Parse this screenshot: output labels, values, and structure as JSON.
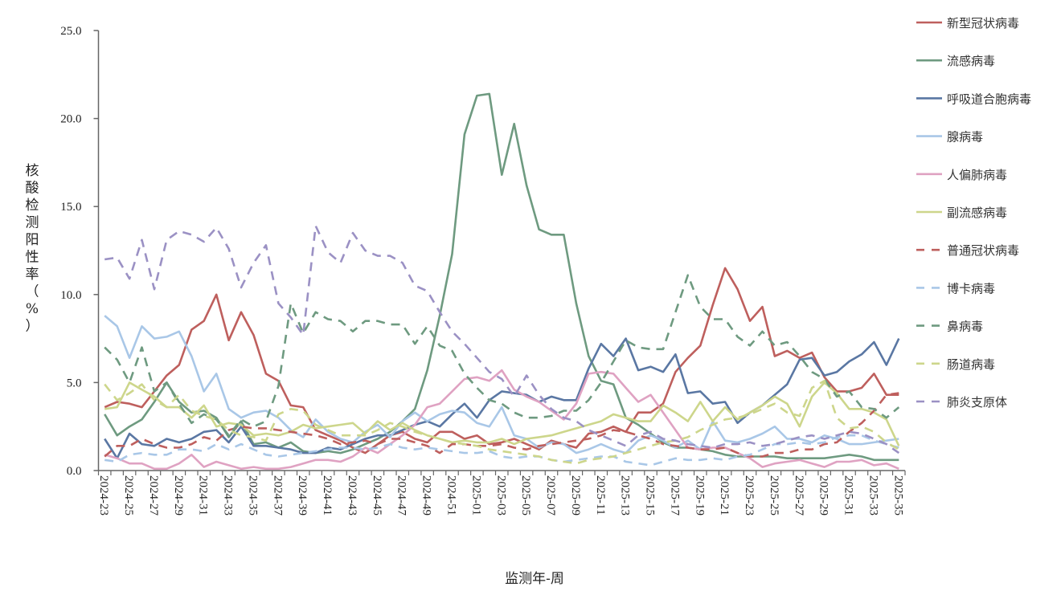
{
  "chart_data": {
    "type": "line",
    "title": "",
    "xlabel": "监测年-周",
    "ylabel": "核酸检测阳性率（%）",
    "ylim": [
      0,
      25
    ],
    "yticks": [
      "0.0",
      "5.0",
      "10.0",
      "15.0",
      "20.0",
      "25.0"
    ],
    "grid": false,
    "legend_position": "right",
    "categories": [
      "2024-23",
      "2024-24",
      "2024-25",
      "2024-26",
      "2024-27",
      "2024-28",
      "2024-29",
      "2024-30",
      "2024-31",
      "2024-32",
      "2024-33",
      "2024-34",
      "2024-35",
      "2024-36",
      "2024-37",
      "2024-38",
      "2024-39",
      "2024-40",
      "2024-41",
      "2024-42",
      "2024-43",
      "2024-44",
      "2024-45",
      "2024-46",
      "2024-47",
      "2024-48",
      "2024-49",
      "2024-50",
      "2024-51",
      "2024-52",
      "2025-01",
      "2025-02",
      "2025-03",
      "2025-04",
      "2025-05",
      "2025-06",
      "2025-07",
      "2025-08",
      "2025-09",
      "2025-10",
      "2025-11",
      "2025-12",
      "2025-13",
      "2025-14",
      "2025-15",
      "2025-16",
      "2025-17",
      "2025-18",
      "2025-19",
      "2025-20",
      "2025-21",
      "2025-22",
      "2025-23",
      "2025-24",
      "2025-25",
      "2025-26",
      "2025-27",
      "2025-28",
      "2025-29",
      "2025-30",
      "2025-31",
      "2025-32",
      "2025-33",
      "2025-34",
      "2025-35"
    ],
    "series": [
      {
        "name": "新型冠状病毒",
        "color": "#be5f5d",
        "dash": false,
        "values": [
          3.6,
          3.9,
          3.8,
          3.6,
          4.5,
          5.4,
          6.0,
          8.0,
          8.5,
          10.0,
          7.4,
          9.0,
          7.7,
          5.5,
          5.1,
          3.7,
          3.6,
          2.3,
          2.0,
          1.7,
          1.3,
          1.0,
          1.5,
          2.0,
          2.2,
          1.8,
          1.6,
          2.2,
          2.2,
          1.8,
          2.0,
          1.5,
          1.6,
          1.8,
          1.5,
          1.2,
          1.7,
          1.5,
          1.3,
          2.1,
          2.2,
          2.5,
          2.2,
          3.3,
          3.3,
          3.8,
          5.6,
          6.4,
          7.1,
          9.4,
          11.5,
          10.3,
          8.5,
          9.3,
          6.5,
          6.8,
          6.4,
          6.7,
          5.3,
          4.5,
          4.5,
          4.7,
          5.5,
          4.3,
          4.3
        ]
      },
      {
        "name": "流感病毒",
        "color": "#6e9a80",
        "dash": false,
        "values": [
          3.2,
          2.0,
          2.5,
          2.9,
          3.9,
          5.0,
          3.9,
          3.3,
          3.4,
          3.0,
          1.9,
          2.8,
          1.5,
          1.6,
          1.3,
          1.6,
          1.1,
          1.0,
          1.1,
          1.0,
          1.2,
          1.5,
          1.8,
          2.2,
          2.8,
          3.5,
          5.7,
          8.8,
          12.3,
          19.1,
          21.3,
          21.4,
          16.8,
          19.7,
          16.2,
          13.7,
          13.4,
          13.4,
          9.5,
          6.5,
          5.1,
          4.9,
          3.0,
          2.6,
          2.1,
          1.6,
          1.3,
          1.3,
          1.2,
          1.1,
          0.9,
          0.8,
          0.8,
          0.8,
          0.8,
          0.7,
          0.7,
          0.7,
          0.7,
          0.8,
          0.9,
          0.8,
          0.6,
          0.6,
          0.6
        ]
      },
      {
        "name": "呼吸道合胞病毒",
        "color": "#5a77a3",
        "dash": false,
        "values": [
          1.8,
          0.7,
          2.1,
          1.5,
          1.4,
          1.8,
          1.6,
          1.8,
          2.2,
          2.3,
          1.6,
          2.5,
          1.4,
          1.4,
          1.3,
          1.2,
          1.0,
          1.0,
          1.3,
          1.2,
          1.5,
          1.8,
          2.0,
          2.0,
          2.3,
          2.6,
          2.8,
          2.5,
          3.2,
          3.8,
          3.0,
          4.0,
          4.5,
          4.4,
          4.3,
          3.9,
          4.2,
          4.0,
          4.0,
          5.8,
          7.2,
          6.5,
          7.5,
          5.7,
          5.9,
          5.6,
          6.6,
          4.4,
          4.5,
          3.8,
          3.9,
          2.7,
          3.3,
          3.7,
          4.3,
          4.9,
          6.3,
          6.4,
          5.4,
          5.6,
          6.2,
          6.6,
          7.3,
          6.0,
          7.5
        ]
      },
      {
        "name": "腺病毒",
        "color": "#a9c7e7",
        "dash": false,
        "values": [
          8.8,
          8.2,
          6.4,
          8.2,
          7.5,
          7.6,
          7.9,
          6.5,
          4.5,
          5.5,
          3.5,
          3.0,
          3.3,
          3.4,
          3.0,
          2.3,
          1.9,
          2.9,
          2.2,
          1.8,
          1.6,
          2.2,
          2.6,
          1.9,
          2.8,
          3.3,
          2.8,
          3.2,
          3.4,
          3.3,
          2.7,
          2.5,
          3.6,
          2.0,
          1.8,
          1.3,
          1.6,
          1.5,
          1.0,
          1.2,
          1.5,
          1.2,
          1.0,
          1.7,
          2.0,
          1.7,
          1.3,
          1.7,
          1.2,
          2.8,
          1.7,
          1.6,
          1.8,
          2.1,
          2.5,
          1.8,
          1.8,
          1.6,
          2.0,
          1.8,
          1.5,
          1.5,
          1.6,
          1.7,
          1.8
        ]
      },
      {
        "name": "人偏肺病毒",
        "color": "#dfa2c2",
        "dash": false,
        "values": [
          0.9,
          0.7,
          0.4,
          0.4,
          0.1,
          0.1,
          0.4,
          0.9,
          0.2,
          0.5,
          0.3,
          0.1,
          0.2,
          0.1,
          0.1,
          0.2,
          0.4,
          0.6,
          0.6,
          0.5,
          0.8,
          1.3,
          1.0,
          1.5,
          2.0,
          2.6,
          3.6,
          3.8,
          4.5,
          5.2,
          5.3,
          5.1,
          5.7,
          4.6,
          4.2,
          3.9,
          3.4,
          2.9,
          3.8,
          5.5,
          5.6,
          5.5,
          4.7,
          3.9,
          4.3,
          3.3,
          2.3,
          1.3,
          1.2,
          1.3,
          1.3,
          1.0,
          0.7,
          0.2,
          0.4,
          0.5,
          0.6,
          0.4,
          0.2,
          0.5,
          0.5,
          0.6,
          0.3,
          0.4,
          0.1
        ]
      },
      {
        "name": "副流感病毒",
        "color": "#cdd68b",
        "dash": false,
        "values": [
          3.5,
          3.6,
          5.0,
          4.6,
          4.2,
          3.6,
          3.6,
          3.0,
          3.7,
          2.5,
          2.7,
          2.6,
          2.0,
          2.1,
          2.0,
          2.2,
          2.6,
          2.4,
          2.5,
          2.6,
          2.7,
          2.1,
          2.8,
          2.3,
          2.7,
          2.3,
          2.0,
          1.8,
          1.6,
          1.7,
          1.6,
          1.6,
          1.8,
          1.5,
          1.8,
          1.9,
          2.0,
          2.2,
          2.4,
          2.6,
          2.8,
          3.2,
          3.0,
          2.8,
          2.8,
          3.7,
          3.3,
          2.8,
          3.9,
          2.8,
          3.6,
          2.9,
          3.3,
          3.7,
          4.2,
          3.8,
          2.5,
          4.2,
          5.0,
          4.4,
          3.5,
          3.5,
          3.3,
          2.9,
          1.4
        ]
      },
      {
        "name": "普通冠状病毒",
        "color": "#be5f5d",
        "dash": true,
        "values": [
          0.8,
          1.4,
          1.4,
          1.8,
          1.5,
          1.3,
          1.3,
          1.5,
          1.9,
          1.7,
          2.3,
          2.5,
          2.4,
          2.4,
          2.3,
          2.2,
          2.1,
          2.0,
          1.8,
          1.5,
          1.6,
          1.7,
          1.5,
          1.8,
          1.8,
          1.6,
          1.4,
          1.0,
          1.5,
          1.5,
          1.4,
          1.4,
          1.5,
          1.3,
          1.2,
          1.4,
          1.5,
          1.6,
          1.7,
          1.8,
          2.0,
          2.3,
          2.2,
          2.0,
          1.8,
          1.5,
          1.4,
          1.3,
          1.2,
          1.2,
          1.3,
          1.0,
          0.8,
          0.8,
          1.0,
          1.0,
          1.2,
          1.2,
          1.5,
          1.6,
          2.2,
          2.7,
          3.4,
          4.3,
          4.4
        ]
      },
      {
        "name": "博卡病毒",
        "color": "#a9c7e7",
        "dash": true,
        "values": [
          0.6,
          0.5,
          0.9,
          1.0,
          0.9,
          0.9,
          1.2,
          1.2,
          1.1,
          1.5,
          1.2,
          1.5,
          1.2,
          0.9,
          0.8,
          0.9,
          1.0,
          1.1,
          1.2,
          1.3,
          1.3,
          1.2,
          1.3,
          1.5,
          1.3,
          1.2,
          1.3,
          1.2,
          1.1,
          1.0,
          1.0,
          1.1,
          0.8,
          0.7,
          0.8,
          0.8,
          0.6,
          0.5,
          0.6,
          0.7,
          0.8,
          0.8,
          0.5,
          0.4,
          0.3,
          0.5,
          0.7,
          0.6,
          0.6,
          0.7,
          0.6,
          0.8,
          0.9,
          1.2,
          1.5,
          1.5,
          1.6,
          1.5,
          1.6,
          1.9,
          2.0,
          2.0,
          1.7,
          1.5,
          1.3
        ]
      },
      {
        "name": "鼻病毒",
        "color": "#6e9a80",
        "dash": true,
        "values": [
          7.0,
          6.3,
          5.0,
          7.0,
          4.5,
          5.0,
          3.8,
          2.7,
          3.2,
          2.9,
          2.0,
          2.9,
          2.5,
          2.8,
          4.8,
          9.5,
          7.8,
          9.0,
          8.6,
          8.5,
          7.9,
          8.5,
          8.5,
          8.3,
          8.3,
          7.2,
          8.2,
          7.1,
          6.8,
          5.5,
          4.7,
          4.0,
          3.8,
          3.3,
          3.0,
          3.0,
          3.1,
          3.4,
          3.4,
          4.0,
          5.0,
          6.2,
          7.4,
          7.0,
          6.9,
          6.9,
          9.0,
          11.1,
          9.3,
          8.6,
          8.6,
          7.6,
          7.1,
          7.9,
          7.1,
          7.3,
          6.5,
          5.6,
          5.2,
          4.2,
          4.5,
          3.6,
          3.5,
          3.0,
          3.6
        ]
      },
      {
        "name": "肠道病毒",
        "color": "#cdd68b",
        "dash": true,
        "values": [
          4.9,
          4.0,
          4.4,
          4.9,
          4.0,
          3.6,
          4.3,
          3.4,
          3.1,
          2.9,
          2.3,
          2.0,
          1.9,
          1.7,
          3.2,
          3.5,
          3.4,
          2.6,
          2.3,
          2.0,
          2.0,
          2.0,
          2.3,
          2.7,
          2.5,
          2.2,
          2.0,
          1.8,
          1.6,
          1.5,
          1.4,
          1.2,
          1.1,
          1.0,
          0.9,
          0.8,
          0.6,
          0.5,
          0.4,
          0.6,
          0.7,
          0.8,
          1.0,
          1.2,
          1.4,
          1.6,
          1.7,
          1.9,
          2.3,
          2.6,
          2.9,
          3.0,
          3.2,
          3.5,
          3.8,
          3.3,
          3.1,
          4.7,
          5.1,
          3.0,
          2.4,
          2.5,
          2.2,
          1.6,
          1.2
        ]
      },
      {
        "name": "肺炎支原体",
        "color": "#9b91c4",
        "dash": true,
        "values": [
          12.0,
          12.1,
          10.9,
          13.1,
          10.3,
          13.1,
          13.6,
          13.4,
          13.0,
          13.8,
          12.6,
          10.4,
          11.8,
          12.8,
          9.5,
          8.7,
          7.7,
          13.9,
          12.4,
          11.8,
          13.5,
          12.5,
          12.2,
          12.2,
          11.8,
          10.5,
          10.2,
          9.0,
          7.9,
          7.2,
          6.4,
          5.6,
          5.2,
          4.2,
          5.4,
          4.3,
          3.5,
          3.0,
          2.8,
          2.3,
          2.0,
          1.7,
          1.4,
          2.0,
          2.2,
          1.8,
          1.7,
          1.5,
          1.4,
          1.3,
          1.5,
          1.5,
          1.6,
          1.4,
          1.5,
          1.7,
          1.9,
          2.0,
          1.8,
          2.0,
          2.2,
          2.1,
          1.8,
          1.5,
          1.0
        ]
      }
    ]
  }
}
